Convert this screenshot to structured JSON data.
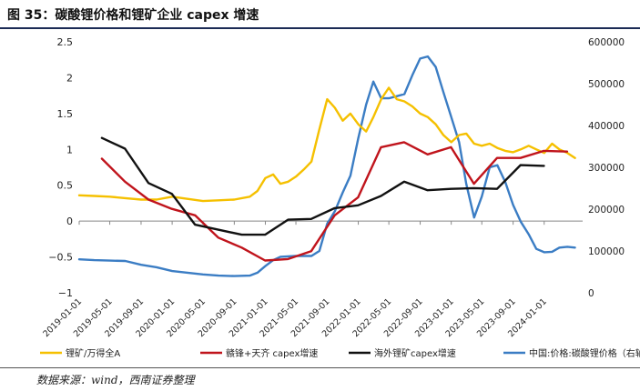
{
  "figure": {
    "title": "图 35：碳酸锂价格和锂矿企业 capex 增速",
    "source": "数据来源：wind，西南证券整理"
  },
  "chart_data": {
    "type": "line",
    "title": "",
    "xlabel": "",
    "ylabel": "",
    "y_left": {
      "min": -1,
      "max": 2.5,
      "ticks": [
        -1,
        -0.5,
        0,
        0.5,
        1,
        1.5,
        2,
        2.5
      ],
      "tick_labels": [
        "−1",
        "−0.5",
        "0",
        "0.5",
        "1",
        "1.5",
        "2",
        "2.5"
      ]
    },
    "y_right": {
      "min": 0,
      "max": 600000,
      "ticks": [
        0,
        100000,
        200000,
        300000,
        400000,
        500000,
        600000
      ],
      "tick_labels": [
        "0",
        "100000",
        "200000",
        "300000",
        "400000",
        "500000",
        "600000"
      ]
    },
    "x_range": [
      "2019-01-01",
      "2024-05-31"
    ],
    "x_ticks": [
      "2019-01-01",
      "2019-05-01",
      "2019-09-01",
      "2020-01-01",
      "2020-05-01",
      "2020-09-01",
      "2021-01-01",
      "2021-05-01",
      "2021-09-01",
      "2022-01-01",
      "2022-05-01",
      "2022-09-01",
      "2023-01-01",
      "2023-05-01",
      "2023-09-01",
      "2024-01-01"
    ],
    "grid": false,
    "legend_position": "bottom",
    "series": [
      {
        "name": "锂矿/万得全A",
        "axis": "left",
        "color": "#f5c000",
        "points": [
          [
            "2019-01-01",
            0.36
          ],
          [
            "2019-03-01",
            0.35
          ],
          [
            "2019-05-01",
            0.34
          ],
          [
            "2019-07-01",
            0.32
          ],
          [
            "2019-09-01",
            0.3
          ],
          [
            "2019-11-01",
            0.3
          ],
          [
            "2020-01-01",
            0.34
          ],
          [
            "2020-03-01",
            0.31
          ],
          [
            "2020-05-01",
            0.28
          ],
          [
            "2020-07-01",
            0.29
          ],
          [
            "2020-09-01",
            0.3
          ],
          [
            "2020-11-01",
            0.34
          ],
          [
            "2020-12-01",
            0.42
          ],
          [
            "2021-01-01",
            0.6
          ],
          [
            "2021-02-01",
            0.65
          ],
          [
            "2021-03-01",
            0.52
          ],
          [
            "2021-04-01",
            0.55
          ],
          [
            "2021-05-01",
            0.62
          ],
          [
            "2021-06-01",
            0.72
          ],
          [
            "2021-07-01",
            0.83
          ],
          [
            "2021-08-01",
            1.28
          ],
          [
            "2021-09-01",
            1.7
          ],
          [
            "2021-10-01",
            1.58
          ],
          [
            "2021-11-01",
            1.4
          ],
          [
            "2021-12-01",
            1.5
          ],
          [
            "2022-01-01",
            1.35
          ],
          [
            "2022-02-01",
            1.25
          ],
          [
            "2022-03-01",
            1.45
          ],
          [
            "2022-04-01",
            1.7
          ],
          [
            "2022-05-01",
            1.86
          ],
          [
            "2022-06-01",
            1.7
          ],
          [
            "2022-07-01",
            1.67
          ],
          [
            "2022-08-01",
            1.6
          ],
          [
            "2022-09-01",
            1.5
          ],
          [
            "2022-10-01",
            1.45
          ],
          [
            "2022-11-01",
            1.35
          ],
          [
            "2022-12-01",
            1.2
          ],
          [
            "2023-01-01",
            1.1
          ],
          [
            "2023-02-01",
            1.2
          ],
          [
            "2023-03-01",
            1.22
          ],
          [
            "2023-04-01",
            1.08
          ],
          [
            "2023-05-01",
            1.05
          ],
          [
            "2023-06-01",
            1.08
          ],
          [
            "2023-07-01",
            1.02
          ],
          [
            "2023-08-01",
            0.98
          ],
          [
            "2023-09-01",
            0.96
          ],
          [
            "2023-10-01",
            1.0
          ],
          [
            "2023-11-01",
            1.05
          ],
          [
            "2023-12-01",
            1.0
          ],
          [
            "2024-01-01",
            0.95
          ],
          [
            "2024-02-01",
            1.08
          ],
          [
            "2024-03-01",
            1.0
          ],
          [
            "2024-04-01",
            0.95
          ],
          [
            "2024-05-01",
            0.88
          ]
        ]
      },
      {
        "name": "赣锋+天齐 capex增速",
        "axis": "left",
        "color": "#c0141c",
        "points": [
          [
            "2019-03-31",
            0.87
          ],
          [
            "2019-06-30",
            0.55
          ],
          [
            "2019-09-30",
            0.3
          ],
          [
            "2019-12-31",
            0.17
          ],
          [
            "2020-03-31",
            0.08
          ],
          [
            "2020-06-30",
            -0.23
          ],
          [
            "2020-09-30",
            -0.37
          ],
          [
            "2020-12-31",
            -0.55
          ],
          [
            "2021-03-31",
            -0.53
          ],
          [
            "2021-06-30",
            -0.42
          ],
          [
            "2021-09-30",
            0.08
          ],
          [
            "2021-12-31",
            0.33
          ],
          [
            "2022-03-31",
            1.03
          ],
          [
            "2022-06-30",
            1.1
          ],
          [
            "2022-09-30",
            0.93
          ],
          [
            "2022-12-31",
            1.03
          ],
          [
            "2023-03-31",
            0.52
          ],
          [
            "2023-06-30",
            0.88
          ],
          [
            "2023-09-30",
            0.88
          ],
          [
            "2023-12-31",
            0.98
          ],
          [
            "2024-03-31",
            0.97
          ]
        ]
      },
      {
        "name": "海外锂矿capex增速",
        "axis": "left",
        "color": "#111111",
        "points": [
          [
            "2019-03-31",
            1.16
          ],
          [
            "2019-06-30",
            1.01
          ],
          [
            "2019-09-30",
            0.53
          ],
          [
            "2019-12-31",
            0.38
          ],
          [
            "2020-03-31",
            -0.05
          ],
          [
            "2020-06-30",
            -0.12
          ],
          [
            "2020-09-30",
            -0.19
          ],
          [
            "2020-12-31",
            -0.19
          ],
          [
            "2021-03-31",
            0.02
          ],
          [
            "2021-06-30",
            0.03
          ],
          [
            "2021-09-30",
            0.18
          ],
          [
            "2021-12-31",
            0.22
          ],
          [
            "2022-03-31",
            0.35
          ],
          [
            "2022-06-30",
            0.55
          ],
          [
            "2022-09-30",
            0.43
          ],
          [
            "2022-12-31",
            0.45
          ],
          [
            "2023-03-31",
            0.46
          ],
          [
            "2023-06-30",
            0.45
          ],
          [
            "2023-09-30",
            0.78
          ],
          [
            "2023-12-31",
            0.77
          ]
        ]
      },
      {
        "name": "中国:价格:碳酸锂价格（右轴，元）",
        "axis": "right",
        "color": "#3b7dc4",
        "points": [
          [
            "2019-01-01",
            80000
          ],
          [
            "2019-03-01",
            78000
          ],
          [
            "2019-05-01",
            77000
          ],
          [
            "2019-07-01",
            76000
          ],
          [
            "2019-09-01",
            67000
          ],
          [
            "2019-11-01",
            61000
          ],
          [
            "2020-01-01",
            52000
          ],
          [
            "2020-03-01",
            48000
          ],
          [
            "2020-05-01",
            44000
          ],
          [
            "2020-07-01",
            41000
          ],
          [
            "2020-09-01",
            40000
          ],
          [
            "2020-11-01",
            41000
          ],
          [
            "2020-12-01",
            48000
          ],
          [
            "2021-01-01",
            64000
          ],
          [
            "2021-02-01",
            78000
          ],
          [
            "2021-03-01",
            86000
          ],
          [
            "2021-05-01",
            88000
          ],
          [
            "2021-07-01",
            88000
          ],
          [
            "2021-08-01",
            100000
          ],
          [
            "2021-09-01",
            165000
          ],
          [
            "2021-10-01",
            195000
          ],
          [
            "2021-11-01",
            240000
          ],
          [
            "2021-12-01",
            280000
          ],
          [
            "2022-01-01",
            370000
          ],
          [
            "2022-02-01",
            450000
          ],
          [
            "2022-03-01",
            505000
          ],
          [
            "2022-04-01",
            465000
          ],
          [
            "2022-05-01",
            465000
          ],
          [
            "2022-06-01",
            470000
          ],
          [
            "2022-07-01",
            475000
          ],
          [
            "2022-08-01",
            520000
          ],
          [
            "2022-09-01",
            560000
          ],
          [
            "2022-10-01",
            565000
          ],
          [
            "2022-11-01",
            540000
          ],
          [
            "2022-12-01",
            480000
          ],
          [
            "2023-01-01",
            420000
          ],
          [
            "2023-02-01",
            360000
          ],
          [
            "2023-03-01",
            260000
          ],
          [
            "2023-04-01",
            180000
          ],
          [
            "2023-05-01",
            230000
          ],
          [
            "2023-06-01",
            300000
          ],
          [
            "2023-07-01",
            305000
          ],
          [
            "2023-08-01",
            265000
          ],
          [
            "2023-09-01",
            210000
          ],
          [
            "2023-10-01",
            170000
          ],
          [
            "2023-11-01",
            140000
          ],
          [
            "2023-12-01",
            105000
          ],
          [
            "2024-01-01",
            97000
          ],
          [
            "2024-02-01",
            98000
          ],
          [
            "2024-03-01",
            108000
          ],
          [
            "2024-04-01",
            110000
          ],
          [
            "2024-05-01",
            108000
          ]
        ]
      }
    ]
  }
}
